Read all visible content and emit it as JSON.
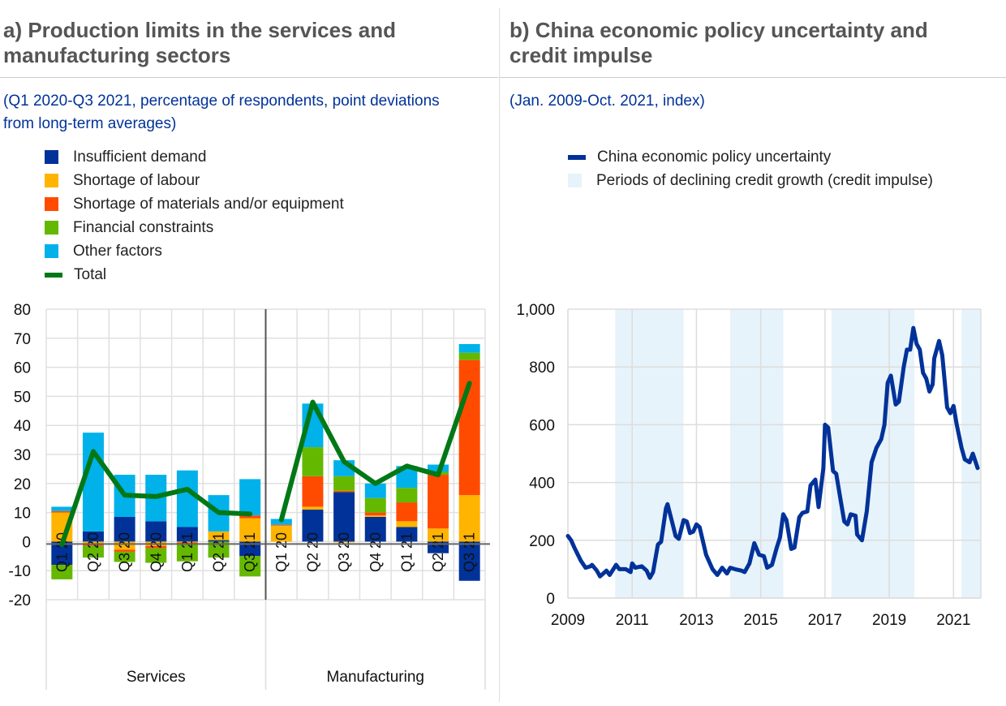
{
  "panel_a": {
    "title_line1": "a) Production limits in the services and",
    "title_line2": "manufacturing sectors",
    "subtitle_line1": "(Q1 2020-Q3 2021, percentage of respondents, point deviations",
    "subtitle_line2": "from long-term averages)"
  },
  "panel_b": {
    "title_line1": "b) China economic policy uncertainty and",
    "title_line2": "credit impulse",
    "subtitle": "(Jan. 2009-Oct. 2021, index)"
  },
  "chart_data": [
    {
      "type": "bar",
      "stacked": true,
      "title": "Production limits in the services and manufacturing sectors",
      "categories": [
        "Q1 20",
        "Q2 20",
        "Q3 20",
        "Q4 20",
        "Q1 21",
        "Q2 21",
        "Q3 21",
        "Q1 20",
        "Q2 20",
        "Q3 20",
        "Q4 20",
        "Q1 21",
        "Q2 21",
        "Q3 21"
      ],
      "groups": [
        {
          "name": "Services",
          "count": 7
        },
        {
          "name": "Manufacturing",
          "count": 7
        }
      ],
      "ylim": [
        -20,
        80
      ],
      "yticks": [
        -20,
        -10,
        0,
        10,
        20,
        30,
        40,
        50,
        60,
        70,
        80
      ],
      "grid": true,
      "legend_position": "top-left",
      "series": [
        {
          "name": "Insufficient demand",
          "color": "#003299",
          "values": [
            -8,
            3.5,
            8.5,
            7,
            5,
            0.5,
            -5,
            0,
            11,
            17,
            8.5,
            5,
            -4,
            -13.5
          ]
        },
        {
          "name": "Shortage of labour",
          "color": "#ffb400",
          "values": [
            10,
            -1,
            -2.8,
            -1.5,
            -0.3,
            3,
            8,
            5.5,
            1,
            -0.3,
            0.5,
            2,
            4.5,
            16
          ]
        },
        {
          "name": "Shortage of materials and/or equipment",
          "color": "#ff4b00",
          "values": [
            0.5,
            -0.5,
            -0.7,
            -0.8,
            -0.5,
            0,
            1,
            0.3,
            10.5,
            0.5,
            1,
            6.5,
            18.5,
            46.5
          ]
        },
        {
          "name": "Financial constraints",
          "color": "#65b800",
          "values": [
            -5,
            -4,
            -3.5,
            -5,
            -6,
            -5.5,
            -7,
            0,
            10,
            5,
            5,
            5,
            1,
            2.5
          ]
        },
        {
          "name": "Other factors",
          "color": "#00b1ea",
          "values": [
            1.5,
            34,
            14.5,
            16,
            19.5,
            12.5,
            12.5,
            2,
            15,
            5.5,
            5,
            7.5,
            2.5,
            3
          ]
        }
      ],
      "line": {
        "name": "Total",
        "color": "#007816",
        "values": [
          -1,
          31,
          16,
          15.5,
          18,
          10,
          9.5,
          7.5,
          48,
          27.5,
          20,
          26,
          23,
          54.5
        ]
      }
    },
    {
      "type": "line",
      "title": "China economic policy uncertainty and credit impulse",
      "xlim": [
        2009,
        2021.85
      ],
      "xticks": [
        "2009",
        "2011",
        "2013",
        "2015",
        "2017",
        "2019",
        "2021"
      ],
      "ylim": [
        0,
        1000
      ],
      "yticks": [
        "0",
        "200",
        "400",
        "600",
        "800",
        "1,000"
      ],
      "grid": true,
      "legend_position": "top",
      "series": [
        {
          "name": "China economic policy uncertainty",
          "color": "#003299",
          "points": [
            [
              2009.0,
              215
            ],
            [
              2009.1,
              200
            ],
            [
              2009.2,
              175
            ],
            [
              2009.4,
              130
            ],
            [
              2009.55,
              105
            ],
            [
              2009.7,
              110
            ],
            [
              2009.75,
              115
            ],
            [
              2009.9,
              95
            ],
            [
              2010.0,
              75
            ],
            [
              2010.15,
              90
            ],
            [
              2010.2,
              95
            ],
            [
              2010.3,
              80
            ],
            [
              2010.5,
              115
            ],
            [
              2010.6,
              100
            ],
            [
              2010.8,
              100
            ],
            [
              2010.95,
              90
            ],
            [
              2011.0,
              120
            ],
            [
              2011.1,
              105
            ],
            [
              2011.3,
              110
            ],
            [
              2011.45,
              95
            ],
            [
              2011.55,
              70
            ],
            [
              2011.65,
              90
            ],
            [
              2011.8,
              185
            ],
            [
              2011.9,
              195
            ],
            [
              2012.05,
              310
            ],
            [
              2012.1,
              325
            ],
            [
              2012.25,
              260
            ],
            [
              2012.35,
              215
            ],
            [
              2012.45,
              205
            ],
            [
              2012.6,
              270
            ],
            [
              2012.7,
              265
            ],
            [
              2012.8,
              225
            ],
            [
              2012.9,
              230
            ],
            [
              2013.0,
              255
            ],
            [
              2013.1,
              245
            ],
            [
              2013.3,
              150
            ],
            [
              2013.5,
              100
            ],
            [
              2013.65,
              80
            ],
            [
              2013.8,
              105
            ],
            [
              2013.95,
              85
            ],
            [
              2014.05,
              105
            ],
            [
              2014.2,
              100
            ],
            [
              2014.4,
              95
            ],
            [
              2014.5,
              90
            ],
            [
              2014.65,
              120
            ],
            [
              2014.8,
              190
            ],
            [
              2014.95,
              150
            ],
            [
              2015.1,
              145
            ],
            [
              2015.2,
              105
            ],
            [
              2015.35,
              115
            ],
            [
              2015.5,
              175
            ],
            [
              2015.6,
              210
            ],
            [
              2015.7,
              290
            ],
            [
              2015.8,
              270
            ],
            [
              2015.95,
              170
            ],
            [
              2016.05,
              175
            ],
            [
              2016.2,
              280
            ],
            [
              2016.3,
              295
            ],
            [
              2016.45,
              300
            ],
            [
              2016.55,
              390
            ],
            [
              2016.7,
              410
            ],
            [
              2016.8,
              315
            ],
            [
              2016.95,
              450
            ],
            [
              2017.0,
              600
            ],
            [
              2017.1,
              590
            ],
            [
              2017.25,
              440
            ],
            [
              2017.35,
              430
            ],
            [
              2017.5,
              330
            ],
            [
              2017.6,
              265
            ],
            [
              2017.7,
              255
            ],
            [
              2017.8,
              290
            ],
            [
              2017.95,
              285
            ],
            [
              2018.0,
              220
            ],
            [
              2018.15,
              200
            ],
            [
              2018.3,
              300
            ],
            [
              2018.45,
              470
            ],
            [
              2018.6,
              520
            ],
            [
              2018.75,
              550
            ],
            [
              2018.85,
              600
            ],
            [
              2018.95,
              745
            ],
            [
              2019.05,
              770
            ],
            [
              2019.2,
              670
            ],
            [
              2019.3,
              680
            ],
            [
              2019.45,
              800
            ],
            [
              2019.55,
              860
            ],
            [
              2019.65,
              860
            ],
            [
              2019.75,
              935
            ],
            [
              2019.85,
              880
            ],
            [
              2019.95,
              860
            ],
            [
              2020.05,
              780
            ],
            [
              2020.15,
              760
            ],
            [
              2020.25,
              715
            ],
            [
              2020.35,
              740
            ],
            [
              2020.4,
              830
            ],
            [
              2020.55,
              890
            ],
            [
              2020.65,
              840
            ],
            [
              2020.8,
              660
            ],
            [
              2020.9,
              640
            ],
            [
              2021.0,
              665
            ],
            [
              2021.1,
              600
            ],
            [
              2021.25,
              520
            ],
            [
              2021.35,
              480
            ],
            [
              2021.5,
              470
            ],
            [
              2021.6,
              500
            ],
            [
              2021.75,
              450
            ]
          ]
        }
      ],
      "shaded_periods": {
        "name": "Periods of declining credit growth (credit impulse)",
        "color": "#e6f3fa",
        "ranges": [
          [
            2010.47,
            2012.6
          ],
          [
            2014.05,
            2015.7
          ],
          [
            2017.2,
            2019.78
          ],
          [
            2021.25,
            2021.85
          ]
        ]
      }
    }
  ]
}
